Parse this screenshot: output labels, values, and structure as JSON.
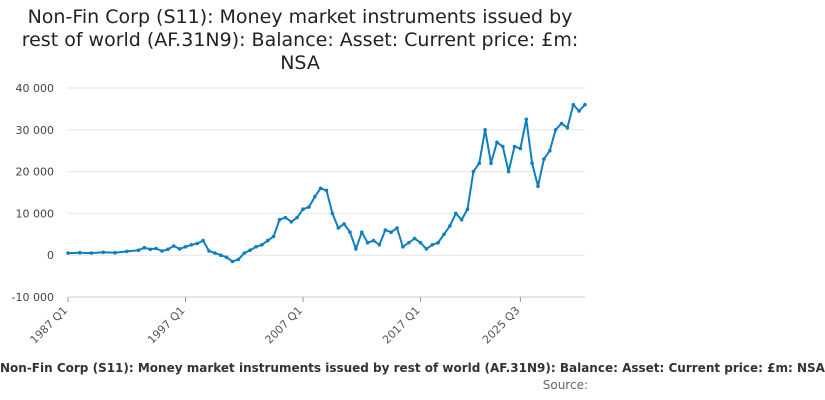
{
  "chart_data": {
    "type": "line",
    "title": "Non-Fin Corp (S11): Money market instruments issued by rest of world (AF.31N9): Balance: Asset: Current price: £m: NSA",
    "xlabel": "",
    "ylabel": "",
    "ylim": [
      -10000,
      40000
    ],
    "yticks": [
      {
        "value": -10000,
        "label": "-10 000"
      },
      {
        "value": 0,
        "label": "0"
      },
      {
        "value": 10000,
        "label": "10 000"
      },
      {
        "value": 20000,
        "label": "20 000"
      },
      {
        "value": 30000,
        "label": "30 000"
      },
      {
        "value": 40000,
        "label": "40 000"
      }
    ],
    "xticks": [
      "1987 Q1",
      "1997 Q1",
      "2007 Q1",
      "2017 Q1",
      "2025 Q3"
    ],
    "grid": true,
    "legend_position": "bottom",
    "color": "#0f7fbf",
    "series": [
      {
        "name": "Non-Fin Corp (S11): Money market instruments issued by rest of world (AF.31N9): Balance: Asset: Current price: £m: NSA",
        "points": [
          [
            "1987 Q1",
            500
          ],
          [
            "1988 Q1",
            600
          ],
          [
            "1989 Q1",
            500
          ],
          [
            "1990 Q1",
            700
          ],
          [
            "1991 Q1",
            600
          ],
          [
            "1992 Q1",
            900
          ],
          [
            "1993 Q1",
            1200
          ],
          [
            "1993 Q3",
            1800
          ],
          [
            "1994 Q1",
            1400
          ],
          [
            "1994 Q3",
            1600
          ],
          [
            "1995 Q1",
            1000
          ],
          [
            "1995 Q3",
            1400
          ],
          [
            "1996 Q1",
            2200
          ],
          [
            "1996 Q3",
            1500
          ],
          [
            "1997 Q1",
            2000
          ],
          [
            "1997 Q3",
            2500
          ],
          [
            "1998 Q1",
            2800
          ],
          [
            "1998 Q3",
            3500
          ],
          [
            "1999 Q1",
            1000
          ],
          [
            "1999 Q3",
            500
          ],
          [
            "2000 Q1",
            0
          ],
          [
            "2000 Q3",
            -500
          ],
          [
            "2001 Q1",
            -1500
          ],
          [
            "2001 Q3",
            -1000
          ],
          [
            "2002 Q1",
            500
          ],
          [
            "2002 Q3",
            1200
          ],
          [
            "2003 Q1",
            2000
          ],
          [
            "2003 Q3",
            2500
          ],
          [
            "2004 Q1",
            3500
          ],
          [
            "2004 Q3",
            4500
          ],
          [
            "2005 Q1",
            8500
          ],
          [
            "2005 Q3",
            9000
          ],
          [
            "2006 Q1",
            8000
          ],
          [
            "2006 Q3",
            9000
          ],
          [
            "2007 Q1",
            11000
          ],
          [
            "2007 Q3",
            11500
          ],
          [
            "2008 Q1",
            14000
          ],
          [
            "2008 Q3",
            16000
          ],
          [
            "2009 Q1",
            15500
          ],
          [
            "2009 Q3",
            10000
          ],
          [
            "2010 Q1",
            6500
          ],
          [
            "2010 Q3",
            7500
          ],
          [
            "2011 Q1",
            5500
          ],
          [
            "2011 Q3",
            1500
          ],
          [
            "2012 Q1",
            5500
          ],
          [
            "2012 Q3",
            3000
          ],
          [
            "2013 Q1",
            3500
          ],
          [
            "2013 Q3",
            2500
          ],
          [
            "2014 Q1",
            6000
          ],
          [
            "2014 Q3",
            5500
          ],
          [
            "2015 Q1",
            6500
          ],
          [
            "2015 Q3",
            2000
          ],
          [
            "2016 Q1",
            3000
          ],
          [
            "2016 Q3",
            4000
          ],
          [
            "2017 Q1",
            3000
          ],
          [
            "2017 Q3",
            1500
          ],
          [
            "2018 Q1",
            2500
          ],
          [
            "2018 Q3",
            3000
          ],
          [
            "2019 Q1",
            5000
          ],
          [
            "2019 Q3",
            7000
          ],
          [
            "2020 Q1",
            10000
          ],
          [
            "2020 Q3",
            8500
          ],
          [
            "2021 Q1",
            11000
          ],
          [
            "2021 Q3",
            20000
          ],
          [
            "2022 Q1",
            22000
          ],
          [
            "2022 Q3",
            30000
          ],
          [
            "2023 Q1",
            22000
          ],
          [
            "2023 Q3",
            27000
          ],
          [
            "2024 Q1",
            26000
          ],
          [
            "2024 Q3",
            20000
          ],
          [
            "2025 Q1",
            26000
          ],
          [
            "2025 Q3",
            25500
          ],
          [
            "2026 Q1",
            32500
          ],
          [
            "2026 Q3",
            22000
          ],
          [
            "2027 Q1",
            16500
          ],
          [
            "2027 Q3",
            23000
          ],
          [
            "2028 Q1",
            25000
          ],
          [
            "2028 Q3",
            30000
          ],
          [
            "2029 Q1",
            31500
          ],
          [
            "2029 Q3",
            30500
          ],
          [
            "2030 Q1",
            36000
          ],
          [
            "2030 Q3",
            34500
          ],
          [
            "2031 Q1",
            36000
          ]
        ]
      }
    ],
    "source_label": "Source:"
  }
}
